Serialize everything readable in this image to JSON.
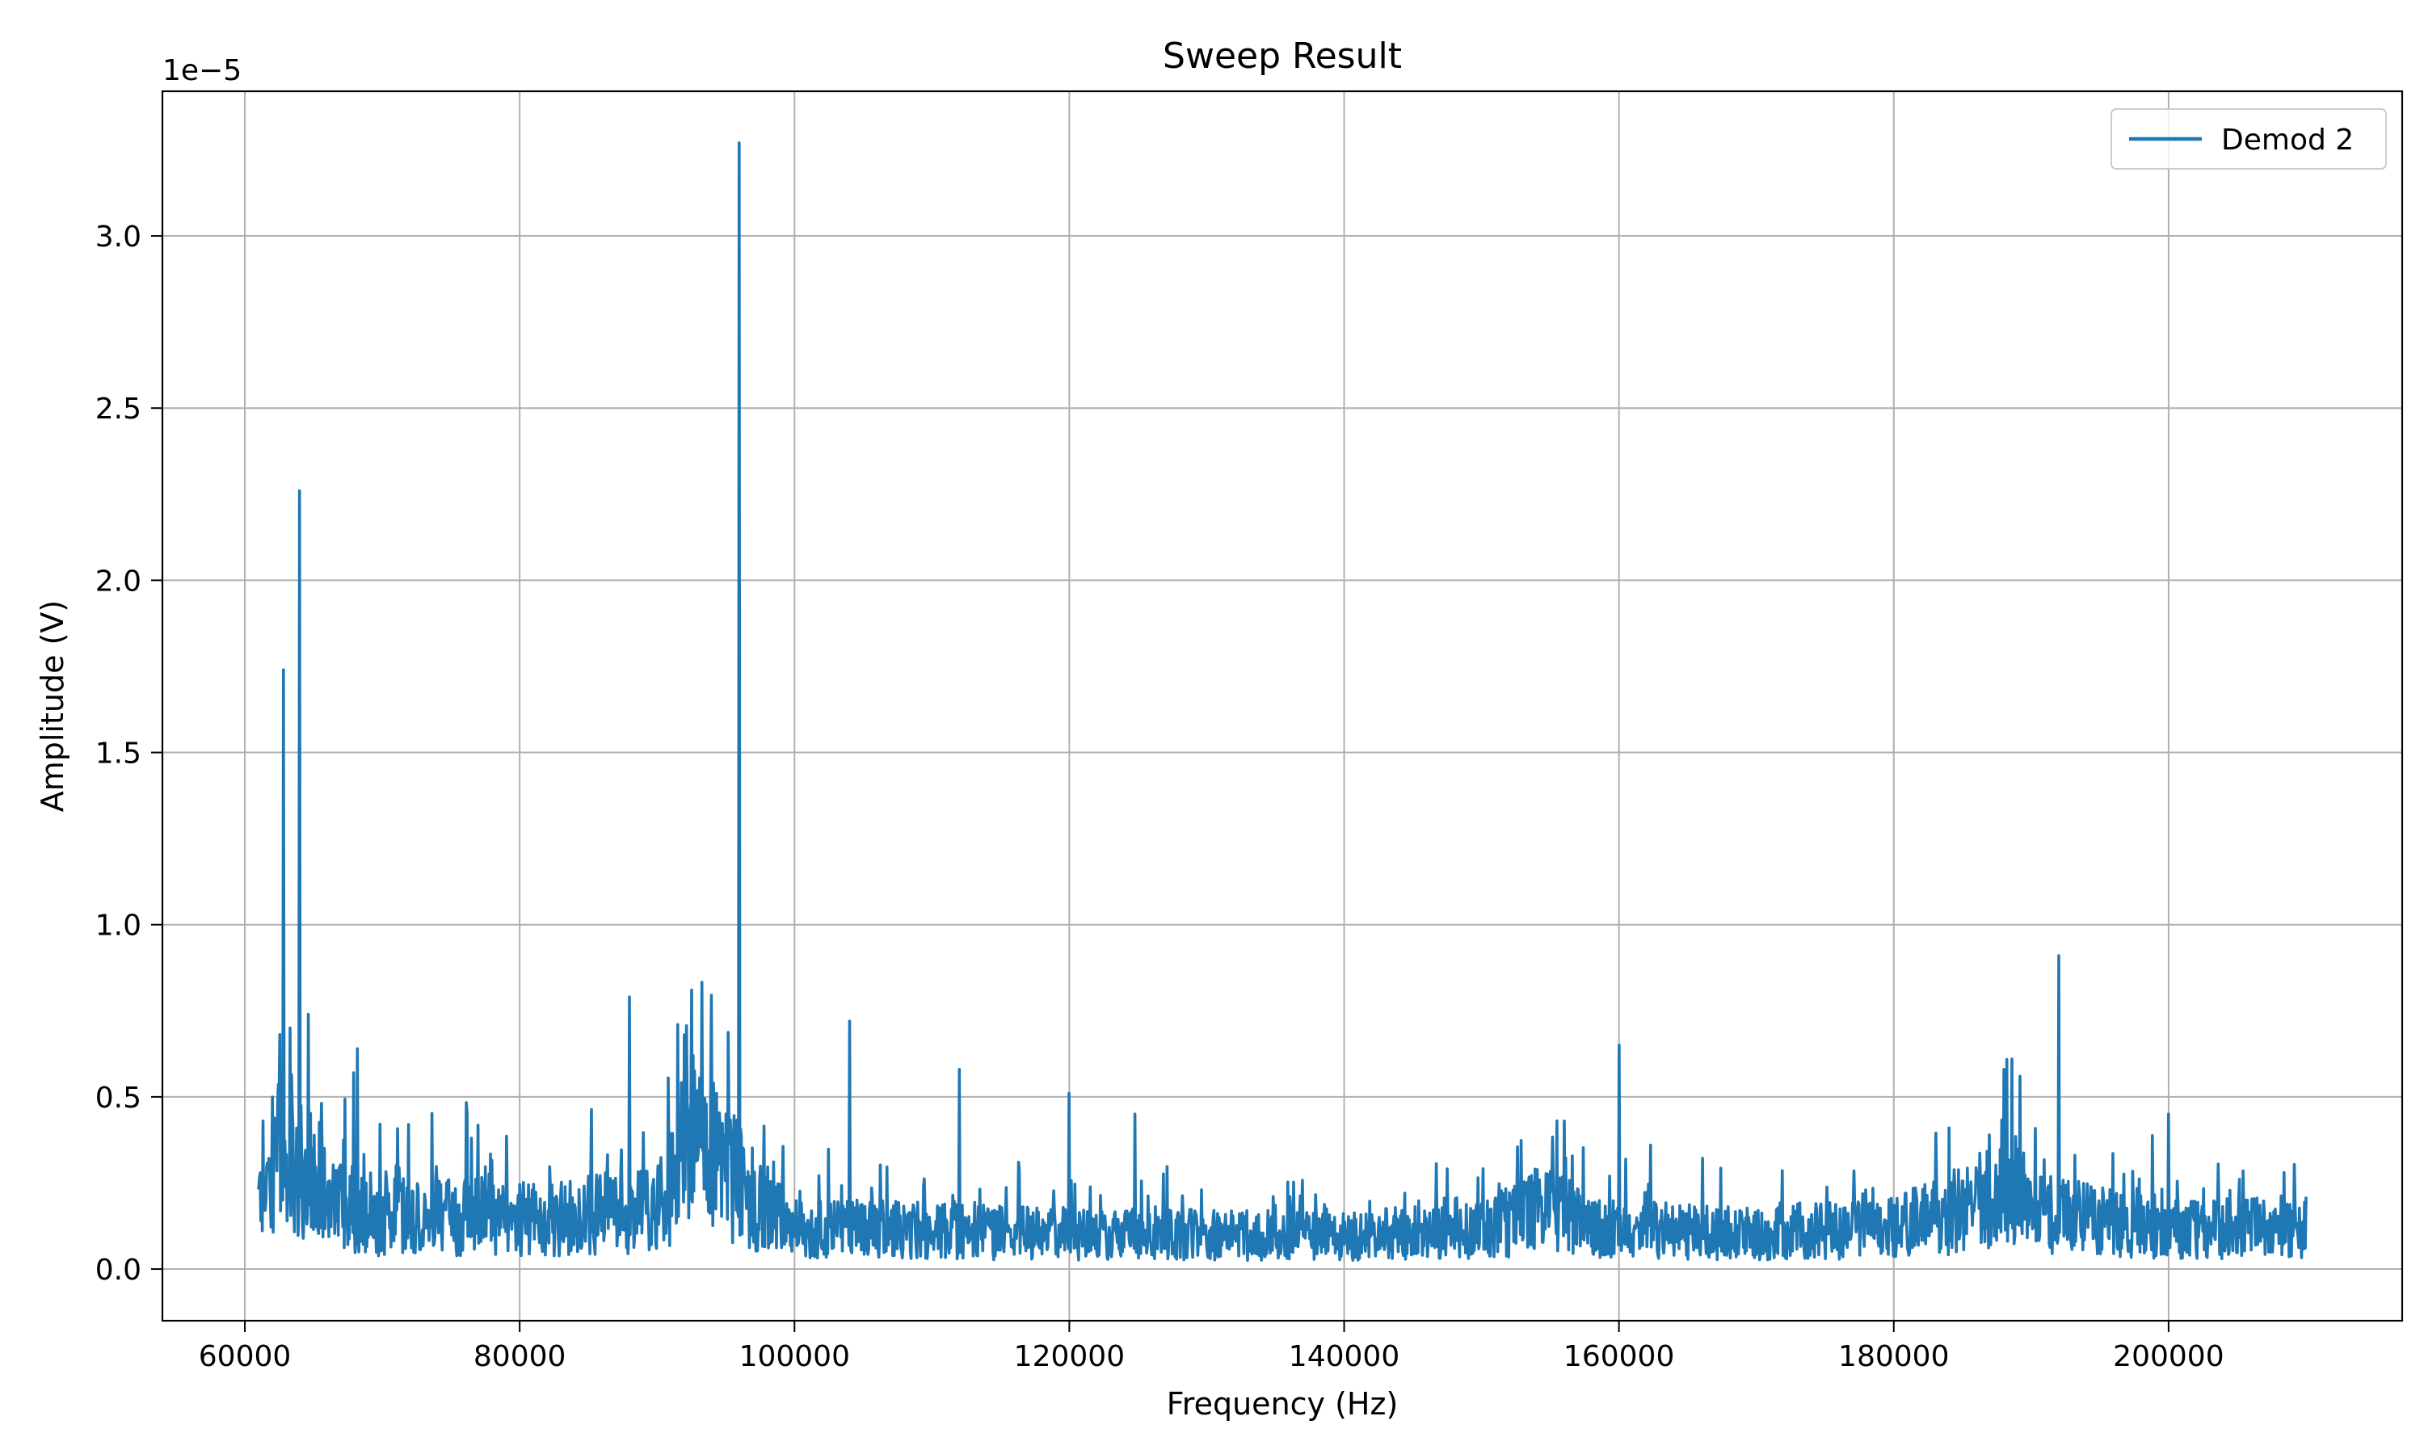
{
  "chart_data": {
    "type": "line",
    "title": "Sweep Result",
    "xlabel": "Frequency (Hz)",
    "ylabel": "Amplitude (V)",
    "y_offset_label": "1e−5",
    "y_scale": 1e-05,
    "xlim": [
      54000,
      217000
    ],
    "ylim": [
      -0.15,
      3.42
    ],
    "x_ticks": [
      60000,
      80000,
      100000,
      120000,
      140000,
      160000,
      180000,
      200000
    ],
    "x_tick_labels": [
      "60000",
      "80000",
      "100000",
      "120000",
      "140000",
      "160000",
      "180000",
      "200000"
    ],
    "y_ticks": [
      0.0,
      0.5,
      1.0,
      1.5,
      2.0,
      2.5,
      3.0
    ],
    "y_tick_labels": [
      "0.0",
      "0.5",
      "1.0",
      "1.5",
      "2.0",
      "2.5",
      "3.0"
    ],
    "grid": true,
    "legend_position": "top-right",
    "colors": {
      "series": "#1f77b4",
      "grid": "#b0b0b0",
      "axes": "#000000"
    },
    "series": [
      {
        "name": "Demod 2",
        "x_range": [
          61000,
          210000
        ],
        "baseline": [
          [
            61000,
            0.22
          ],
          [
            63000,
            0.35
          ],
          [
            66000,
            0.2
          ],
          [
            70000,
            0.15
          ],
          [
            74000,
            0.15
          ],
          [
            78000,
            0.16
          ],
          [
            82000,
            0.14
          ],
          [
            86000,
            0.16
          ],
          [
            90000,
            0.17
          ],
          [
            92000,
            0.33
          ],
          [
            95000,
            0.3
          ],
          [
            97000,
            0.2
          ],
          [
            100000,
            0.12
          ],
          [
            120000,
            0.1
          ],
          [
            140000,
            0.1
          ],
          [
            150000,
            0.11
          ],
          [
            155000,
            0.18
          ],
          [
            158000,
            0.12
          ],
          [
            170000,
            0.1
          ],
          [
            180000,
            0.12
          ],
          [
            186000,
            0.18
          ],
          [
            188000,
            0.28
          ],
          [
            190000,
            0.16
          ],
          [
            200000,
            0.12
          ],
          [
            210000,
            0.12
          ]
        ],
        "peaks": [
          [
            62800,
            1.74
          ],
          [
            63300,
            0.7
          ],
          [
            64000,
            2.26
          ],
          [
            64600,
            0.74
          ],
          [
            61300,
            0.43
          ],
          [
            67900,
            0.57
          ],
          [
            68200,
            0.64
          ],
          [
            71900,
            0.42
          ],
          [
            76500,
            0.38
          ],
          [
            88000,
            0.79
          ],
          [
            91500,
            0.71
          ],
          [
            92000,
            0.68
          ],
          [
            92600,
            0.62
          ],
          [
            94100,
            0.54
          ],
          [
            96000,
            3.27
          ],
          [
            104000,
            0.72
          ],
          [
            112000,
            0.58
          ],
          [
            120000,
            0.51
          ],
          [
            124800,
            0.45
          ],
          [
            155500,
            0.43
          ],
          [
            156000,
            0.43
          ],
          [
            160000,
            0.65
          ],
          [
            184000,
            0.41
          ],
          [
            188000,
            0.58
          ],
          [
            188600,
            0.61
          ],
          [
            189200,
            0.56
          ],
          [
            192000,
            0.91
          ],
          [
            200000,
            0.45
          ],
          [
            208400,
            0.28
          ],
          [
            210000,
            0.21
          ]
        ]
      }
    ]
  }
}
